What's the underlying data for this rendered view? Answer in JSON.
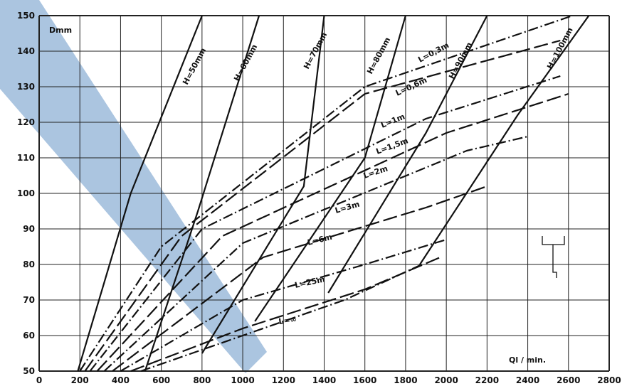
{
  "chart_data": {
    "type": "line",
    "title": "",
    "ylabel": "Dmm",
    "xlabel": "Ql / min.",
    "xlim": [
      0,
      2800
    ],
    "ylim": [
      50,
      150
    ],
    "x_ticks": [
      "0",
      "200",
      "400",
      "600",
      "800",
      "1000",
      "1200",
      "1400",
      "1600",
      "1800",
      "2000",
      "2200",
      "2400",
      "2600",
      "2800"
    ],
    "y_ticks": [
      "50",
      "60",
      "70",
      "80",
      "90",
      "100",
      "110",
      "120",
      "130",
      "140",
      "150"
    ],
    "grid": true,
    "colors": {
      "ink": "#111111",
      "grid": "#222222",
      "watermark": "#8fb2d6"
    },
    "series": [
      {
        "name": "H=50mm",
        "style": "solid",
        "points": [
          [
            190,
            50
          ],
          [
            450,
            100
          ],
          [
            800,
            150
          ]
        ]
      },
      {
        "name": "H=60mm",
        "style": "solid",
        "points": [
          [
            520,
            50
          ],
          [
            780,
            95
          ],
          [
            1080,
            150
          ]
        ]
      },
      {
        "name": "H=70mm",
        "style": "solid",
        "points": [
          [
            800,
            55
          ],
          [
            1300,
            102
          ],
          [
            1400,
            150
          ]
        ]
      },
      {
        "name": "H=80mm",
        "style": "solid",
        "points": [
          [
            1060,
            64
          ],
          [
            1600,
            110
          ],
          [
            1800,
            150
          ]
        ]
      },
      {
        "name": "H=90mm",
        "style": "solid",
        "points": [
          [
            1420,
            72
          ],
          [
            1900,
            117
          ],
          [
            2200,
            150
          ]
        ]
      },
      {
        "name": "H=100mm",
        "style": "solid",
        "points": [
          [
            1870,
            80
          ],
          [
            2350,
            122
          ],
          [
            2700,
            150
          ]
        ]
      },
      {
        "name": "L=0,3m",
        "style": "dash-dot",
        "points": [
          [
            200,
            50
          ],
          [
            600,
            85
          ],
          [
            1600,
            130
          ],
          [
            2620,
            150
          ]
        ]
      },
      {
        "name": "L=0,6m",
        "style": "long-dash",
        "points": [
          [
            225,
            50
          ],
          [
            700,
            88
          ],
          [
            1600,
            128
          ],
          [
            2560,
            143
          ]
        ]
      },
      {
        "name": "L=1m",
        "style": "dash-dot",
        "points": [
          [
            250,
            50
          ],
          [
            800,
            90
          ],
          [
            1900,
            121
          ],
          [
            2560,
            133
          ]
        ]
      },
      {
        "name": "L=1,5m",
        "style": "long-dash",
        "points": [
          [
            285,
            50
          ],
          [
            900,
            88
          ],
          [
            2000,
            117
          ],
          [
            2600,
            128
          ]
        ]
      },
      {
        "name": "L=2m",
        "style": "dash-dot",
        "points": [
          [
            320,
            50
          ],
          [
            1000,
            86
          ],
          [
            2100,
            112
          ],
          [
            2400,
            116
          ]
        ]
      },
      {
        "name": "L=3m",
        "style": "long-dash",
        "points": [
          [
            360,
            50
          ],
          [
            1100,
            82
          ],
          [
            1900,
            96
          ],
          [
            2200,
            102
          ]
        ]
      },
      {
        "name": "L=6m",
        "style": "dash-dot",
        "points": [
          [
            400,
            50
          ],
          [
            1000,
            70
          ],
          [
            1600,
            80
          ],
          [
            2000,
            87
          ]
        ]
      },
      {
        "name": "L=25m",
        "style": "long-dash",
        "points": [
          [
            450,
            50
          ],
          [
            1000,
            62
          ],
          [
            1600,
            73
          ],
          [
            1970,
            82
          ]
        ]
      },
      {
        "name": "L=∞",
        "style": "dash-dot",
        "points": [
          [
            500,
            50
          ],
          [
            1000,
            60
          ],
          [
            1500,
            70
          ],
          [
            1880,
            80
          ]
        ]
      }
    ],
    "curve_labels": [
      "H=50mm",
      "H=60mm",
      "H=70mm",
      "H=80mm",
      "H=90mm",
      "H=100mm",
      "L=0,3m",
      "L=0,6m",
      "L=1m",
      "L=1,5m",
      "L=2m",
      "L=3m",
      "L=6m",
      "L=25m",
      "L=∞"
    ]
  }
}
